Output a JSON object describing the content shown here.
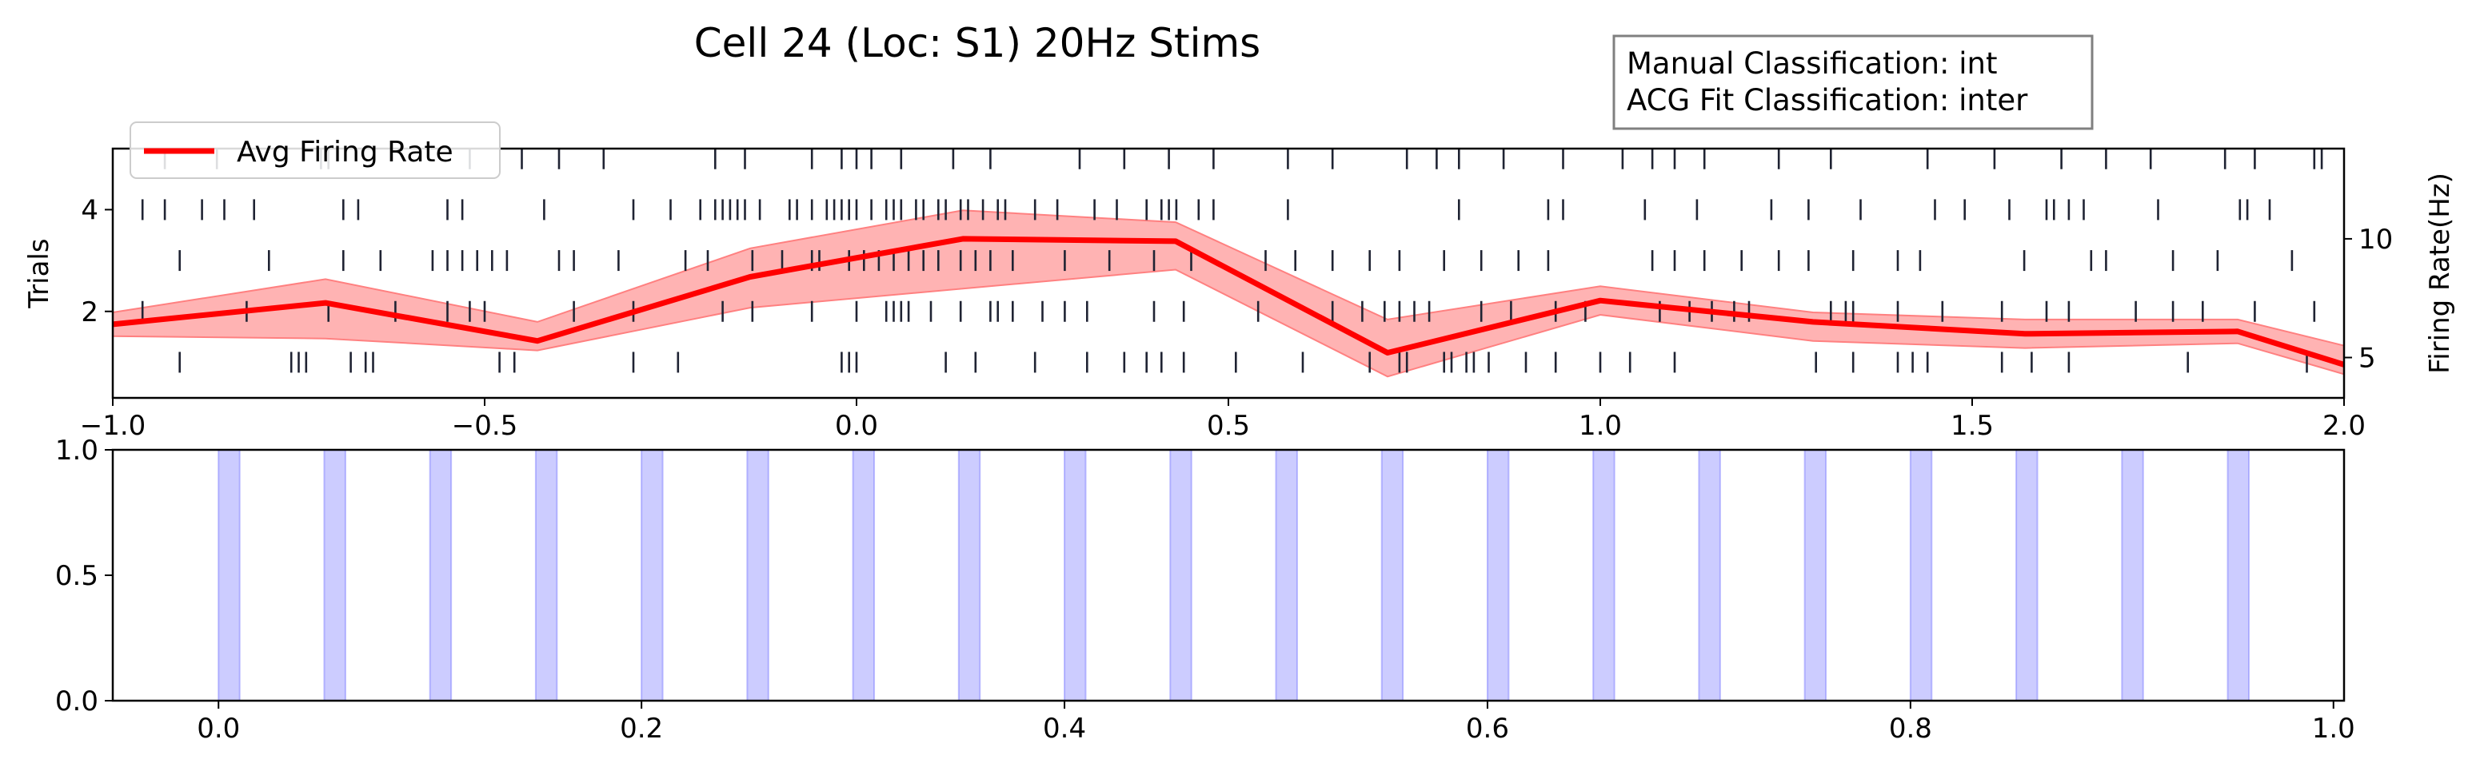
{
  "figure": {
    "title": "Cell 24 (Loc: S1) 20Hz Stims",
    "info_box": [
      "Manual Classification: int",
      "ACG Fit Classification: inter"
    ]
  },
  "chart_data": [
    {
      "type": "scatter",
      "name": "raster-and-firing-rate",
      "xlim": [
        -1.0,
        2.0
      ],
      "x_ticks": [
        "−1.0",
        "−0.5",
        "0.0",
        "0.5",
        "1.0",
        "1.5",
        "2.0"
      ],
      "x_tick_values": [
        -1.0,
        -0.5,
        0.0,
        0.5,
        1.0,
        1.5,
        2.0
      ],
      "ylabel_left": "Trials",
      "ylim_left": [
        0.3,
        5.2
      ],
      "y_ticks_left": [
        "2",
        "4"
      ],
      "y_tick_values_left": [
        2,
        4
      ],
      "ylabel_right": "Firing Rate(Hz)",
      "ylim_right": [
        3.3,
        13.8
      ],
      "y_ticks_right": [
        "5",
        "10"
      ],
      "y_tick_values_right": [
        5,
        10
      ],
      "legend": {
        "label": "Avg Firing Rate",
        "location": "upper-left"
      },
      "colors": {
        "rate_line": "#ff0000",
        "band": "#ff8080",
        "spike": "#1f2333"
      },
      "firing_rate": {
        "x": [
          -1.0,
          -0.714,
          -0.429,
          -0.143,
          0.143,
          0.429,
          0.714,
          1.0,
          1.286,
          1.571,
          1.857,
          2.0
        ],
        "y": [
          6.4,
          7.3,
          5.7,
          8.4,
          10.0,
          9.9,
          5.2,
          7.4,
          6.5,
          6.0,
          6.1,
          4.7
        ],
        "upper": [
          6.9,
          8.3,
          6.5,
          9.6,
          11.2,
          10.7,
          6.6,
          8.0,
          6.9,
          6.6,
          6.6,
          5.5
        ],
        "lower": [
          5.9,
          5.8,
          5.3,
          7.1,
          7.9,
          8.7,
          4.2,
          6.8,
          5.7,
          5.4,
          5.6,
          4.3
        ]
      },
      "spikes": [
        {
          "trial": 5,
          "times": [
            -0.93,
            -0.86,
            -0.72,
            -0.71,
            -0.52,
            -0.45,
            -0.4,
            -0.34,
            -0.19,
            -0.15,
            -0.06,
            -0.02,
            0.0,
            0.02,
            0.06,
            0.13,
            0.18,
            0.3,
            0.36,
            0.42,
            0.48,
            0.58,
            0.64,
            0.74,
            0.78,
            0.81,
            0.87,
            0.95,
            1.03,
            1.07,
            1.1,
            1.14,
            1.24,
            1.31,
            1.44,
            1.53,
            1.62,
            1.68,
            1.74,
            1.84,
            1.88,
            1.96,
            1.97
          ]
        },
        {
          "trial": 4,
          "times": [
            -0.96,
            -0.93,
            -0.88,
            -0.85,
            -0.81,
            -0.69,
            -0.67,
            -0.55,
            -0.53,
            -0.42,
            -0.3,
            -0.25,
            -0.21,
            -0.19,
            -0.18,
            -0.17,
            -0.16,
            -0.15,
            -0.13,
            -0.09,
            -0.08,
            -0.06,
            -0.04,
            -0.03,
            -0.02,
            -0.01,
            0.0,
            0.02,
            0.04,
            0.05,
            0.06,
            0.08,
            0.09,
            0.11,
            0.12,
            0.14,
            0.15,
            0.17,
            0.19,
            0.2,
            0.24,
            0.27,
            0.32,
            0.35,
            0.39,
            0.41,
            0.42,
            0.43,
            0.46,
            0.48,
            0.58,
            0.81,
            0.93,
            0.95,
            1.06,
            1.13,
            1.23,
            1.28,
            1.35,
            1.45,
            1.49,
            1.55,
            1.6,
            1.61,
            1.63,
            1.65,
            1.75,
            1.86,
            1.87,
            1.9
          ]
        },
        {
          "trial": 3,
          "times": [
            -0.91,
            -0.79,
            -0.69,
            -0.64,
            -0.57,
            -0.55,
            -0.53,
            -0.51,
            -0.49,
            -0.47,
            -0.4,
            -0.38,
            -0.32,
            -0.23,
            -0.2,
            -0.14,
            -0.1,
            -0.06,
            -0.05,
            -0.01,
            0.01,
            0.03,
            0.05,
            0.07,
            0.09,
            0.11,
            0.14,
            0.16,
            0.18,
            0.21,
            0.28,
            0.34,
            0.4,
            0.45,
            0.55,
            0.59,
            0.64,
            0.69,
            0.73,
            0.79,
            0.84,
            0.89,
            0.93,
            1.07,
            1.1,
            1.14,
            1.19,
            1.24,
            1.28,
            1.34,
            1.4,
            1.43,
            1.57,
            1.66,
            1.68,
            1.77,
            1.83,
            1.93
          ]
        },
        {
          "trial": 2,
          "times": [
            -0.96,
            -0.82,
            -0.71,
            -0.62,
            -0.55,
            -0.52,
            -0.5,
            -0.38,
            -0.3,
            -0.18,
            -0.14,
            -0.06,
            0.0,
            0.04,
            0.05,
            0.06,
            0.07,
            0.1,
            0.14,
            0.18,
            0.19,
            0.21,
            0.25,
            0.28,
            0.31,
            0.4,
            0.44,
            0.54,
            0.64,
            0.68,
            0.71,
            0.73,
            0.75,
            0.77,
            0.84,
            0.88,
            0.94,
            0.98,
            1.08,
            1.12,
            1.15,
            1.18,
            1.2,
            1.31,
            1.33,
            1.34,
            1.4,
            1.46,
            1.54,
            1.6,
            1.63,
            1.72,
            1.77,
            1.81,
            1.88,
            1.96
          ]
        },
        {
          "trial": 1,
          "times": [
            -0.91,
            -0.76,
            -0.75,
            -0.74,
            -0.68,
            -0.66,
            -0.65,
            -0.48,
            -0.46,
            -0.3,
            -0.24,
            -0.02,
            -0.01,
            0.0,
            0.12,
            0.16,
            0.24,
            0.31,
            0.36,
            0.39,
            0.41,
            0.44,
            0.51,
            0.6,
            0.69,
            0.73,
            0.74,
            0.79,
            0.8,
            0.82,
            0.83,
            0.85,
            0.9,
            0.94,
            1.0,
            1.04,
            1.1,
            1.29,
            1.34,
            1.4,
            1.42,
            1.44,
            1.54,
            1.58,
            1.63,
            1.79,
            1.95
          ]
        }
      ]
    },
    {
      "type": "bar",
      "name": "stimulus-pulses",
      "xlim": [
        -0.05,
        1.005
      ],
      "x_ticks": [
        "0.0",
        "0.2",
        "0.4",
        "0.6",
        "0.8",
        "1.0"
      ],
      "x_tick_values": [
        0.0,
        0.2,
        0.4,
        0.6,
        0.8,
        1.0
      ],
      "ylim": [
        0.0,
        1.0
      ],
      "y_ticks": [
        "0.0",
        "0.5",
        "1.0"
      ],
      "y_tick_values": [
        0.0,
        0.5,
        1.0
      ],
      "pulse_color": "#8080ff",
      "pulse_width": 0.01,
      "pulse_starts": [
        0.0,
        0.05,
        0.1,
        0.15,
        0.2,
        0.25,
        0.3,
        0.35,
        0.4,
        0.45,
        0.5,
        0.55,
        0.6,
        0.65,
        0.7,
        0.75,
        0.8,
        0.85,
        0.9,
        0.95
      ]
    }
  ]
}
